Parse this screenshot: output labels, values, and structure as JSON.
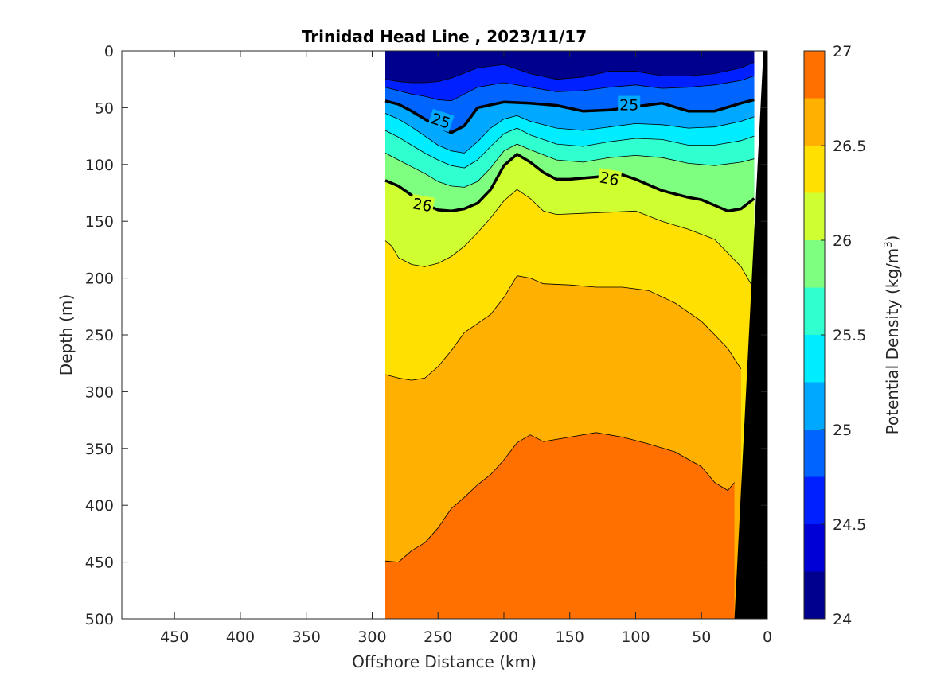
{
  "chart_data": {
    "type": "heatmap",
    "subtype": "filled-contour-section",
    "title": "Trinidad Head Line , 2023/11/17",
    "xlabel": "Offshore Distance (km)",
    "ylabel": "Depth (m)",
    "xlim": [
      490,
      0
    ],
    "ylim": [
      0,
      500
    ],
    "x_reversed": true,
    "y_reversed": true,
    "xticks": [
      450,
      400,
      350,
      300,
      250,
      200,
      150,
      100,
      50,
      0
    ],
    "yticks": [
      0,
      50,
      100,
      150,
      200,
      250,
      300,
      350,
      400,
      450,
      500
    ],
    "data_extent_x": [
      290,
      10
    ],
    "colorbar": {
      "label": "Potential Density (kg/m",
      "label_sup": "3",
      "label_close": ")",
      "min": 24,
      "max": 27,
      "step": 0.25,
      "ticks": [
        24,
        24.5,
        25,
        25.5,
        26,
        26.5,
        27
      ],
      "colors": [
        "#00008f",
        "#0000d6",
        "#0020ff",
        "#0064ff",
        "#00a8ff",
        "#00ecff",
        "#30ffcf",
        "#7fff80",
        "#cfff30",
        "#ffe000",
        "#ffb000",
        "#ff7000",
        "#ff2000",
        "#cf0000"
      ]
    },
    "levels": [
      24.5,
      24.75,
      25,
      25.25,
      25.5,
      25.75,
      26,
      26.25,
      26.5,
      26.75
    ],
    "labeled_levels": [
      {
        "text": "25",
        "x": 248,
        "y": 62,
        "angle": 18
      },
      {
        "text": "25",
        "x": 105,
        "y": 48,
        "angle": 0
      },
      {
        "text": "26",
        "x": 262,
        "y": 136,
        "angle": 10
      },
      {
        "text": "26",
        "x": 120,
        "y": 113,
        "angle": 10
      }
    ],
    "isopycnals": [
      {
        "level": 24.5,
        "x": [
          290,
          280,
          270,
          260,
          250,
          240,
          220,
          200,
          180,
          160,
          140,
          120,
          100,
          80,
          60,
          40,
          20,
          10
        ],
        "y": [
          25,
          27,
          28,
          28,
          27,
          24,
          15,
          12,
          20,
          25,
          23,
          18,
          18,
          22,
          22,
          20,
          15,
          10
        ]
      },
      {
        "level": 24.75,
        "x": [
          290,
          280,
          270,
          260,
          250,
          240,
          220,
          200,
          180,
          160,
          140,
          120,
          100,
          80,
          60,
          40,
          20,
          10
        ],
        "y": [
          32,
          35,
          38,
          40,
          43,
          44,
          32,
          28,
          32,
          36,
          35,
          32,
          30,
          33,
          32,
          30,
          26,
          22
        ]
      },
      {
        "level": 25,
        "x": [
          290,
          280,
          270,
          260,
          250,
          240,
          230,
          220,
          200,
          180,
          160,
          140,
          120,
          100,
          80,
          60,
          40,
          20,
          10
        ],
        "y": [
          44,
          47,
          53,
          60,
          67,
          72,
          66,
          50,
          45,
          46,
          48,
          53,
          52,
          49,
          46,
          53,
          53,
          46,
          43
        ]
      },
      {
        "level": 25.25,
        "x": [
          290,
          280,
          270,
          260,
          250,
          240,
          230,
          220,
          210,
          200,
          190,
          180,
          160,
          140,
          120,
          100,
          80,
          60,
          40,
          20,
          10
        ],
        "y": [
          55,
          60,
          67,
          75,
          83,
          88,
          90,
          80,
          68,
          60,
          57,
          62,
          68,
          70,
          67,
          64,
          65,
          68,
          67,
          62,
          58
        ]
      },
      {
        "level": 25.5,
        "x": [
          290,
          280,
          270,
          260,
          250,
          240,
          230,
          220,
          210,
          200,
          190,
          180,
          160,
          140,
          120,
          100,
          80,
          60,
          40,
          20,
          10
        ],
        "y": [
          70,
          76,
          83,
          90,
          96,
          101,
          103,
          96,
          84,
          73,
          68,
          74,
          82,
          84,
          80,
          77,
          78,
          83,
          83,
          79,
          75
        ]
      },
      {
        "level": 25.75,
        "x": [
          290,
          280,
          270,
          260,
          250,
          240,
          230,
          220,
          210,
          200,
          190,
          180,
          160,
          140,
          120,
          100,
          80,
          60,
          40,
          20,
          10
        ],
        "y": [
          90,
          96,
          102,
          108,
          115,
          119,
          120,
          115,
          103,
          88,
          82,
          87,
          96,
          98,
          94,
          92,
          94,
          99,
          101,
          98,
          95
        ]
      },
      {
        "level": 26,
        "x": [
          290,
          280,
          270,
          260,
          250,
          240,
          230,
          220,
          210,
          200,
          190,
          180,
          170,
          160,
          150,
          140,
          130,
          120,
          110,
          100,
          90,
          80,
          70,
          60,
          50,
          40,
          30,
          20,
          10
        ],
        "y": [
          114,
          119,
          127,
          135,
          140,
          141,
          139,
          134,
          122,
          101,
          91,
          98,
          107,
          113,
          113,
          112,
          111,
          110,
          109,
          113,
          118,
          123,
          126,
          129,
          131,
          136,
          141,
          139,
          130
        ]
      },
      {
        "level": 26.25,
        "x": [
          290,
          285,
          280,
          270,
          260,
          250,
          240,
          230,
          220,
          210,
          200,
          190,
          180,
          170,
          160,
          140,
          120,
          100,
          80,
          60,
          40,
          20,
          10
        ],
        "y": [
          167,
          172,
          182,
          188,
          190,
          187,
          181,
          172,
          160,
          147,
          132,
          122,
          130,
          141,
          144,
          143,
          142,
          141,
          150,
          157,
          166,
          190,
          210
        ]
      },
      {
        "level": 26.5,
        "x": [
          290,
          280,
          270,
          260,
          250,
          240,
          230,
          220,
          210,
          200,
          190,
          180,
          170,
          150,
          130,
          110,
          90,
          70,
          50,
          30,
          20
        ],
        "y": [
          285,
          288,
          290,
          288,
          278,
          264,
          248,
          240,
          232,
          217,
          198,
          200,
          205,
          206,
          208,
          208,
          211,
          222,
          238,
          262,
          280
        ]
      },
      {
        "level": 26.75,
        "x": [
          290,
          280,
          270,
          260,
          250,
          240,
          230,
          220,
          210,
          200,
          190,
          180,
          170,
          150,
          130,
          110,
          90,
          70,
          50,
          40,
          30,
          25
        ],
        "y": [
          449,
          450,
          440,
          433,
          420,
          403,
          393,
          382,
          373,
          360,
          345,
          338,
          344,
          340,
          336,
          340,
          346,
          353,
          366,
          380,
          387,
          380
        ]
      }
    ],
    "bottom_mask": {
      "color": "#000000",
      "x": [
        25,
        3,
        0,
        0
      ],
      "y": [
        500,
        0,
        0,
        500
      ]
    }
  }
}
